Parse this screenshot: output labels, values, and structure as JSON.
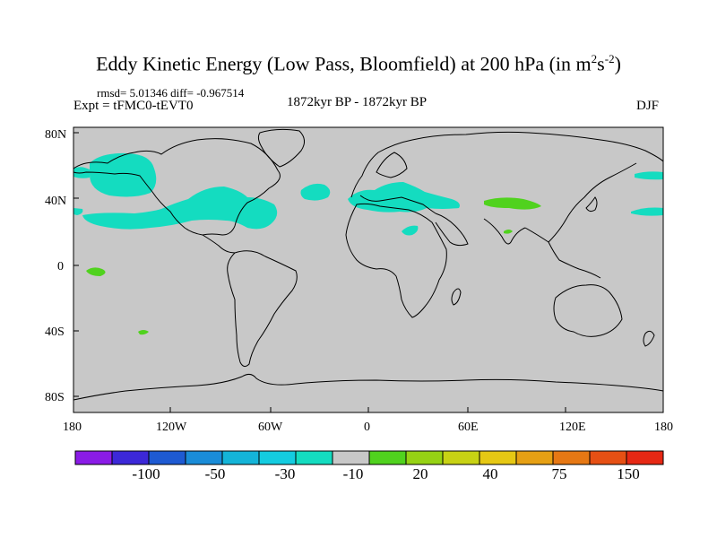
{
  "title_main": "Eddy Kinetic Energy (Low Pass, Bloomfield) at 200 hPa (in m",
  "title_sup1": "2",
  "title_s": "s",
  "title_sup2": "-2",
  "title_end": ")",
  "stats": "rmsd= 5.01346 diff= -0.967514",
  "experiment": "Expt = tFMC0-tEVT0",
  "period": "1872kyr BP - 1872kyr BP",
  "season": "DJF",
  "lat_ticks": [
    "80N",
    "40N",
    "0",
    "40S",
    "80S"
  ],
  "lon_ticks": [
    "180",
    "120W",
    "60W",
    "0",
    "60E",
    "120E",
    "180"
  ],
  "colorbar": {
    "labels": [
      "-100",
      "-50",
      "-30",
      "-10",
      "20",
      "40",
      "75",
      "150"
    ],
    "colors": [
      "#8a1be6",
      "#3c28d8",
      "#1e5ad2",
      "#1a8cd8",
      "#14b4d8",
      "#14cce0",
      "#14dcc0",
      "#c8c8c8",
      "#50d21e",
      "#96d214",
      "#c8d214",
      "#e6c814",
      "#e6a014",
      "#e67814",
      "#e65014",
      "#e62814"
    ]
  },
  "colors": {
    "ocean": "#c8c8c8",
    "positive": "#50d21e",
    "negative": "#14dcc0"
  }
}
